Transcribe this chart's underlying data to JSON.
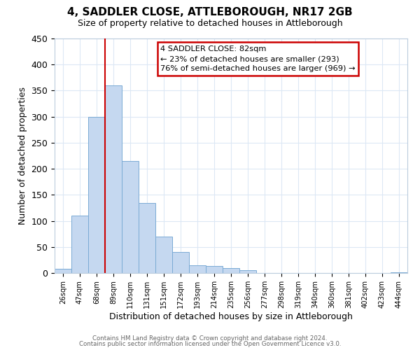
{
  "title": "4, SADDLER CLOSE, ATTLEBOROUGH, NR17 2GB",
  "subtitle": "Size of property relative to detached houses in Attleborough",
  "xlabel": "Distribution of detached houses by size in Attleborough",
  "ylabel": "Number of detached properties",
  "bar_color": "#c5d8f0",
  "bar_edge_color": "#7aabd4",
  "background_color": "#ffffff",
  "grid_color": "#dce8f5",
  "bin_labels": [
    "26sqm",
    "47sqm",
    "68sqm",
    "89sqm",
    "110sqm",
    "131sqm",
    "151sqm",
    "172sqm",
    "193sqm",
    "214sqm",
    "235sqm",
    "256sqm",
    "277sqm",
    "298sqm",
    "319sqm",
    "340sqm",
    "360sqm",
    "381sqm",
    "402sqm",
    "423sqm",
    "444sqm"
  ],
  "bar_values": [
    8,
    110,
    300,
    360,
    215,
    135,
    70,
    40,
    15,
    13,
    10,
    5,
    0,
    0,
    0,
    0,
    0,
    0,
    0,
    0,
    2
  ],
  "ylim": [
    0,
    450
  ],
  "yticks": [
    0,
    50,
    100,
    150,
    200,
    250,
    300,
    350,
    400,
    450
  ],
  "vline_bin_index": 3,
  "bin_edges": [
    26,
    47,
    68,
    89,
    110,
    131,
    151,
    172,
    193,
    214,
    235,
    256,
    277,
    298,
    319,
    340,
    360,
    381,
    402,
    423,
    444
  ],
  "annotation_title": "4 SADDLER CLOSE: 82sqm",
  "annotation_line1": "← 23% of detached houses are smaller (293)",
  "annotation_line2": "76% of semi-detached houses are larger (969) →",
  "annotation_box_color": "#ffffff",
  "annotation_box_edge": "#cc0000",
  "vline_color": "#cc0000",
  "footer1": "Contains HM Land Registry data © Crown copyright and database right 2024.",
  "footer2": "Contains public sector information licensed under the Open Government Licence v3.0."
}
